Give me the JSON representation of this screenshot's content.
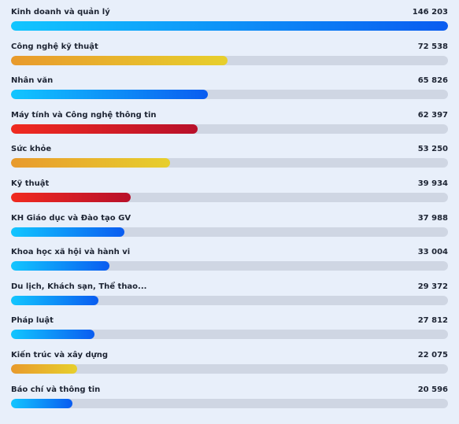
{
  "chart_data": {
    "type": "bar",
    "orientation": "horizontal",
    "categories": [
      "Kinh doanh và quản lý",
      "Công nghệ kỹ thuật",
      "Nhân văn",
      "Máy tính và Công nghệ thông tin",
      "Sức khỏe",
      "Kỹ thuật",
      "KH Giáo dục và Đào tạo GV",
      "Khoa học xã hội và hành vi",
      "Du lịch, Khách sạn, Thể thao...",
      "Pháp luật",
      "Kiến trúc và xây dựng",
      "Báo chí và thông tin"
    ],
    "values": [
      146203,
      72538,
      65826,
      62397,
      53250,
      39934,
      37988,
      33004,
      29372,
      27812,
      22075,
      20596
    ],
    "value_labels": [
      "146 203",
      "72 538",
      "65 826",
      "62 397",
      "53 250",
      "39 934",
      "37 988",
      "33 004",
      "29 372",
      "27 812",
      "22 075",
      "20 596"
    ],
    "xlim": [
      0,
      146203
    ],
    "bar_colors": [
      "blue",
      "orange",
      "blue",
      "red",
      "orange",
      "red",
      "blue",
      "blue",
      "blue",
      "blue",
      "orange",
      "blue"
    ],
    "palette": {
      "blue": [
        "#12c6ff",
        "#0a5cf0"
      ],
      "orange": [
        "#e89a2c",
        "#e7cf2c"
      ],
      "red": [
        "#f02a20",
        "#b8102a"
      ],
      "track": "#cfd6e3",
      "background": "#e8effa"
    },
    "grid": false,
    "legend": "none"
  }
}
